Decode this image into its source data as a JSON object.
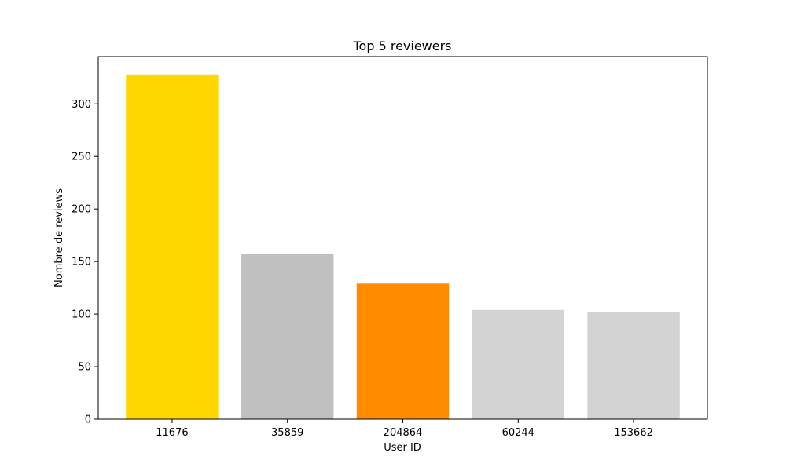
{
  "chart_data": {
    "type": "bar",
    "title": "Top 5 reviewers",
    "xlabel": "User ID",
    "ylabel": "Nombre de reviews",
    "categories": [
      "11676",
      "35859",
      "204864",
      "60244",
      "153662"
    ],
    "values": [
      328,
      157,
      129,
      104,
      102
    ],
    "colors": [
      "#FFD700",
      "#C0C0C0",
      "#FF8C00",
      "#D3D3D3",
      "#D3D3D3"
    ],
    "ylim": [
      0,
      345
    ],
    "yticks": [
      0,
      50,
      100,
      150,
      200,
      250,
      300
    ],
    "grid": false,
    "legend": false
  }
}
